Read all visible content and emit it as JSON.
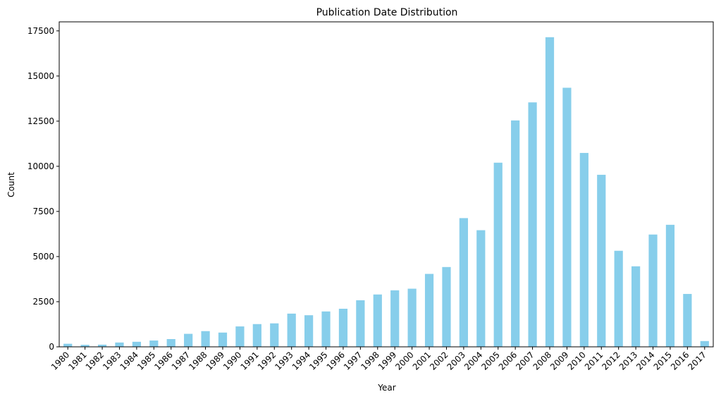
{
  "chart_data": {
    "type": "bar",
    "title": "Publication Date Distribution",
    "xlabel": "Year",
    "ylabel": "Count",
    "ylim": [
      0,
      18000
    ],
    "yticks": [
      0,
      2500,
      5000,
      7500,
      10000,
      12500,
      15000,
      17500
    ],
    "grid": false,
    "bar_color": "#87ceeb",
    "categories": [
      "1980",
      "1981",
      "1982",
      "1983",
      "1984",
      "1985",
      "1986",
      "1987",
      "1988",
      "1989",
      "1990",
      "1991",
      "1992",
      "1993",
      "1994",
      "1995",
      "1996",
      "1997",
      "1998",
      "1999",
      "2000",
      "2001",
      "2002",
      "2003",
      "2004",
      "2005",
      "2006",
      "2007",
      "2008",
      "2009",
      "2010",
      "2011",
      "2012",
      "2013",
      "2014",
      "2015",
      "2016",
      "2017"
    ],
    "values": [
      170,
      110,
      120,
      240,
      280,
      350,
      430,
      720,
      870,
      790,
      1130,
      1260,
      1300,
      1840,
      1750,
      1960,
      2110,
      2580,
      2900,
      3130,
      3220,
      4040,
      4420,
      7130,
      6460,
      10200,
      12540,
      13540,
      17150,
      14350,
      10740,
      9530,
      5320,
      4460,
      6220,
      6760,
      2930,
      320
    ]
  }
}
